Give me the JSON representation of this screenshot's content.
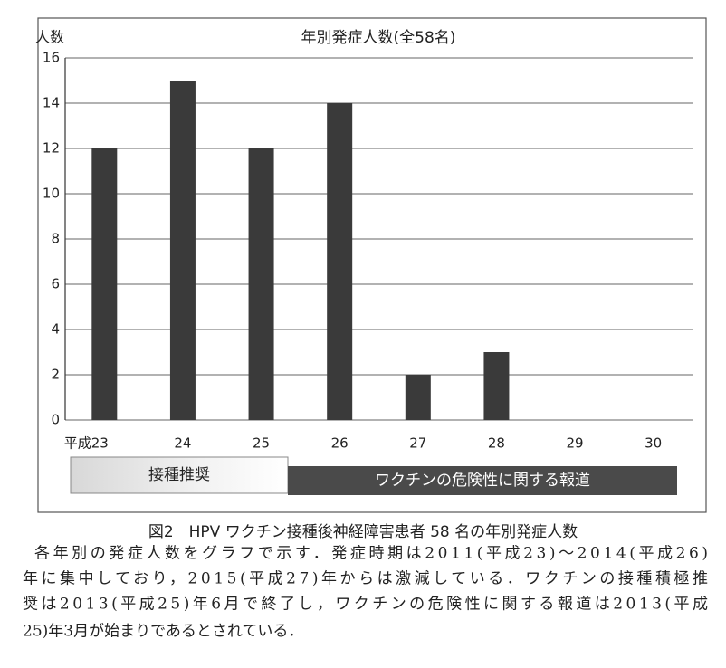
{
  "chart_data": {
    "type": "bar",
    "y_label": "人数",
    "title": "年別発症人数(全58名)",
    "categories": [
      "平成23",
      "24",
      "25",
      "26",
      "27",
      "28",
      "29",
      "30"
    ],
    "values": [
      12,
      15,
      12,
      14,
      2,
      3,
      0,
      0
    ],
    "color": "#3a3a3a",
    "ylim": [
      0,
      16
    ],
    "yticks": [
      0,
      2,
      4,
      6,
      8,
      10,
      12,
      14,
      16
    ],
    "grid": true,
    "annotations": [
      "接種推奨",
      "ワクチンの危険性に関する報道"
    ]
  },
  "figure_caption": "図2　HPV ワクチン接種後神経障害患者 58 名の年別発症人数",
  "body_lines": [
    "各年別の発症人数をグラフで示す．発症時期は2011(平成23)～2014(平成26)",
    "年に集中しており，2015(平成27)年からは激減している．ワクチンの接種積極推",
    "奨は2013(平成25)年6月で終了し，ワクチンの危険性に関する報道は2013(平成",
    "25)年3月が始まりであるとされている．"
  ]
}
